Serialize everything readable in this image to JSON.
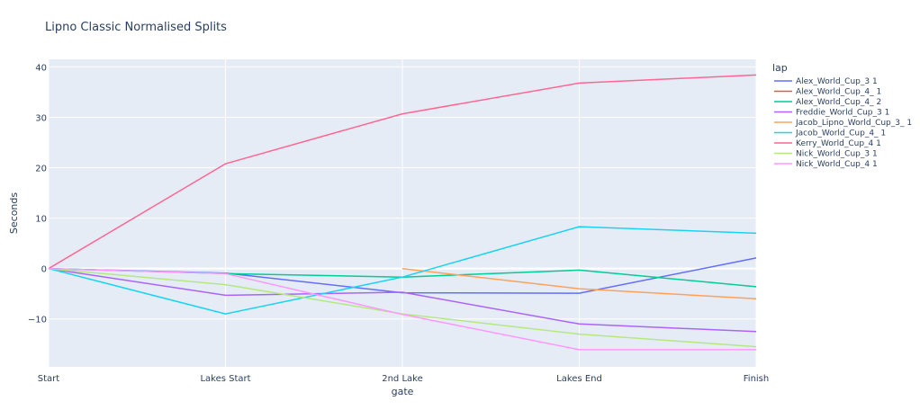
{
  "chart_data": {
    "type": "line",
    "title": "Lipno Classic Normalised Splits",
    "xlabel": "gate",
    "ylabel": "Seconds",
    "categories": [
      "Start",
      "Lakes Start",
      "2nd Lake",
      "Lakes End",
      "Finish"
    ],
    "ylim": [
      -19.5,
      41.5
    ],
    "yticks": [
      -10,
      0,
      10,
      20,
      30,
      40
    ],
    "grid": true,
    "legend": {
      "title": "lap",
      "placement": "right"
    },
    "series": [
      {
        "name": "Alex_World_Cup_3 1",
        "color": "#636efa",
        "values": [
          0,
          -0.9,
          -4.8,
          -4.9,
          2.1
        ]
      },
      {
        "name": "Alex_World_Cup_4_ 1",
        "color": "#EF553B",
        "values": [
          null,
          null,
          null,
          null,
          null
        ]
      },
      {
        "name": "Alex_World_Cup_4_ 2",
        "color": "#00cc96",
        "values": [
          0,
          -1.0,
          -1.7,
          -0.3,
          -3.6
        ]
      },
      {
        "name": "Freddie_World_Cup_3 1",
        "color": "#ab63fa",
        "values": [
          0,
          -5.3,
          -4.7,
          -11.0,
          -12.5
        ]
      },
      {
        "name": "Jacob_Lipno_World_Cup_3_ 1",
        "color": "#FFA15A",
        "values": [
          null,
          null,
          0,
          -4.0,
          -6.0
        ]
      },
      {
        "name": "Jacob_World_Cup_4_ 1",
        "color": "#19d3f3",
        "values": [
          0,
          -9.0,
          -1.7,
          8.3,
          7.0
        ]
      },
      {
        "name": "Kerry_World_Cup_4 1",
        "color": "#FF6692",
        "values": [
          0,
          20.8,
          30.7,
          36.8,
          38.4
        ]
      },
      {
        "name": "Nick_World_Cup_3 1",
        "color": "#B6E880",
        "values": [
          0,
          -3.2,
          -9.0,
          -13.0,
          -15.5
        ]
      },
      {
        "name": "Nick_World_Cup_4 1",
        "color": "#FF97FF",
        "values": [
          0,
          -1.0,
          -9.1,
          -16.1,
          -16.1
        ]
      }
    ]
  }
}
